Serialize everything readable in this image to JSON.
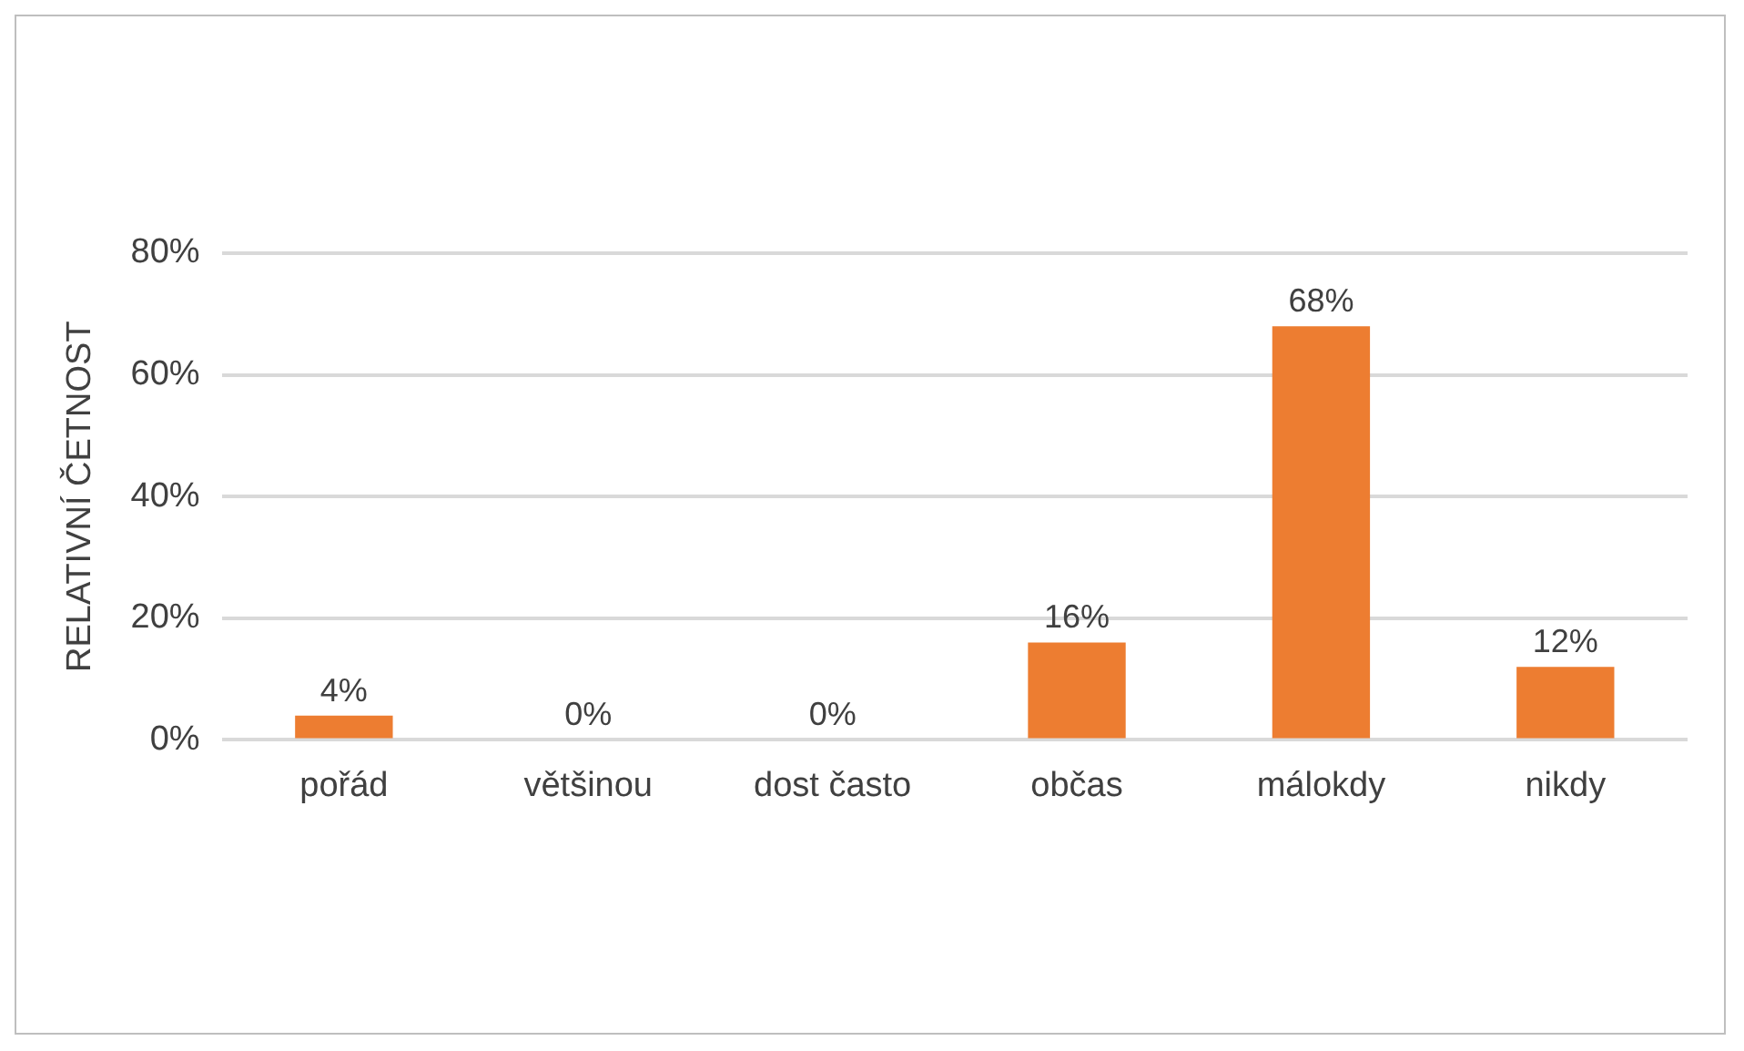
{
  "chart_data": {
    "type": "bar",
    "ylabel": "RELATIVNÍ ČETNOST",
    "categories": [
      "pořád",
      "většinou",
      "dost často",
      "občas",
      "málokdy",
      "nikdy"
    ],
    "values": [
      4,
      0,
      0,
      16,
      68,
      12
    ],
    "value_labels": [
      "4%",
      "0%",
      "0%",
      "16%",
      "68%",
      "12%"
    ],
    "color": "#ed7d31",
    "ylim": [
      0,
      80
    ],
    "yticks": [
      {
        "value": 0,
        "label": "0%"
      },
      {
        "value": 20,
        "label": "20%"
      },
      {
        "value": 40,
        "label": "40%"
      },
      {
        "value": 60,
        "label": "60%"
      },
      {
        "value": 80,
        "label": "80%"
      }
    ],
    "grid": "y",
    "legend": false
  }
}
